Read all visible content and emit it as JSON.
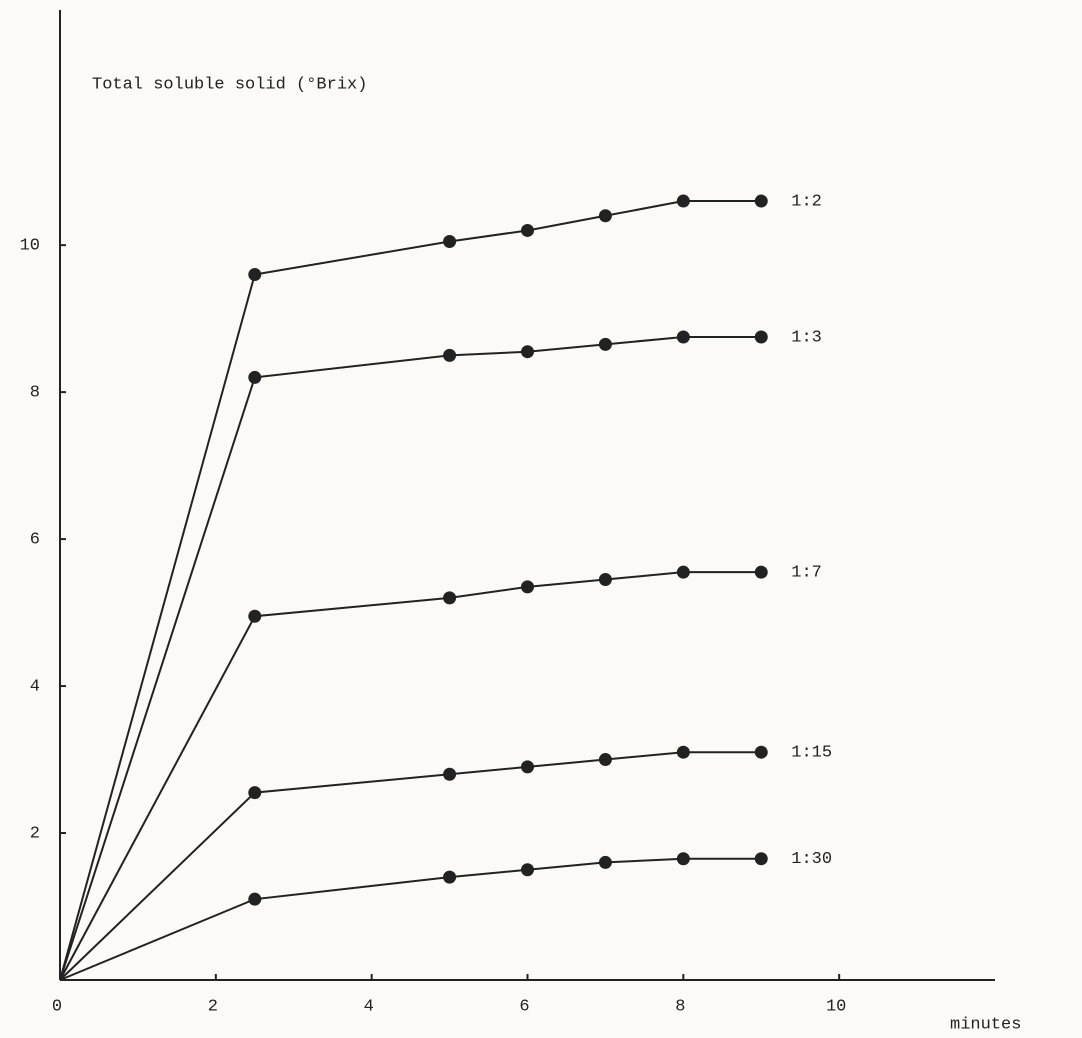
{
  "chart_data": {
    "type": "line",
    "y_label": "Total soluble solid (°Brix)",
    "x_label": "minutes",
    "xlim": [
      0,
      12
    ],
    "ylim": [
      0,
      13.2
    ],
    "xticks": [
      0,
      2,
      4,
      6,
      8,
      10
    ],
    "yticks": [
      2,
      4,
      6,
      8,
      10
    ],
    "color": "#222222",
    "x": [
      0,
      2.5,
      5,
      6,
      7,
      8,
      9
    ],
    "series": [
      {
        "name": "1:2",
        "color": "#222222",
        "values": [
          0,
          9.6,
          10.05,
          10.2,
          10.4,
          10.6,
          10.6
        ]
      },
      {
        "name": "1:3",
        "color": "#222222",
        "values": [
          0,
          8.2,
          8.5,
          8.55,
          8.65,
          8.75,
          8.75
        ]
      },
      {
        "name": "1:7",
        "color": "#222222",
        "values": [
          0,
          4.95,
          5.2,
          5.35,
          5.45,
          5.55,
          5.55
        ]
      },
      {
        "name": "1:15",
        "color": "#222222",
        "values": [
          0,
          2.55,
          2.8,
          2.9,
          3.0,
          3.1,
          3.1
        ]
      },
      {
        "name": "1:30",
        "color": "#222222",
        "values": [
          0,
          1.1,
          1.4,
          1.5,
          1.6,
          1.65,
          1.65
        ]
      }
    ]
  }
}
